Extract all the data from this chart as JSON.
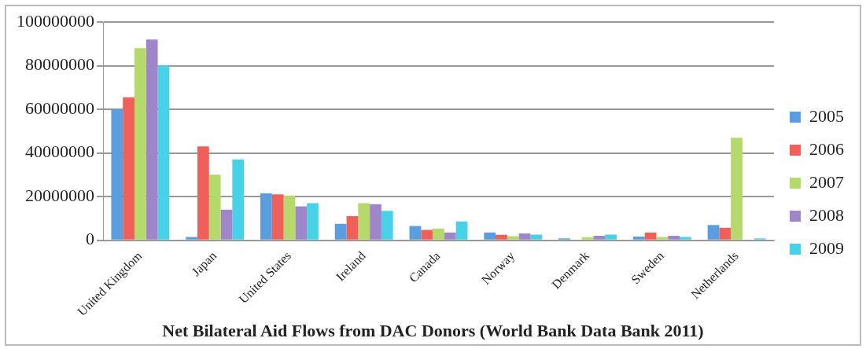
{
  "chart_data": {
    "type": "bar",
    "title": "Net Bilateral Aid Flows from DAC Donors (World Bank Data Bank 2011)",
    "categories": [
      "United Kingdom",
      "Japan",
      "United States",
      "Ireland",
      "Canada",
      "Norway",
      "Denmark",
      "Sweden",
      "Netherlands"
    ],
    "series": [
      {
        "name": "2005",
        "color": "#5b9ee0",
        "values": [
          60000000,
          1500000,
          21500000,
          7500000,
          6500000,
          3600000,
          900000,
          1700000,
          7000000
        ]
      },
      {
        "name": "2006",
        "color": "#f0605a",
        "values": [
          65500000,
          43000000,
          21000000,
          11000000,
          4700000,
          2500000,
          0,
          3600000,
          5700000
        ]
      },
      {
        "name": "2007",
        "color": "#b5d96a",
        "values": [
          88000000,
          30000000,
          20500000,
          17000000,
          5400000,
          1900000,
          1400000,
          1500000,
          47000000
        ]
      },
      {
        "name": "2008",
        "color": "#9f86c8",
        "values": [
          92000000,
          14000000,
          15500000,
          16500000,
          3600000,
          3100000,
          2000000,
          2000000,
          0
        ]
      },
      {
        "name": "2009",
        "color": "#47d2e8",
        "values": [
          80000000,
          37000000,
          17000000,
          13500000,
          8600000,
          2600000,
          2600000,
          1500000,
          900000
        ]
      }
    ],
    "ylim": [
      0,
      100000000
    ],
    "yticks": [
      0,
      20000000,
      40000000,
      60000000,
      80000000,
      100000000
    ],
    "grid": "y",
    "legend": "right"
  }
}
